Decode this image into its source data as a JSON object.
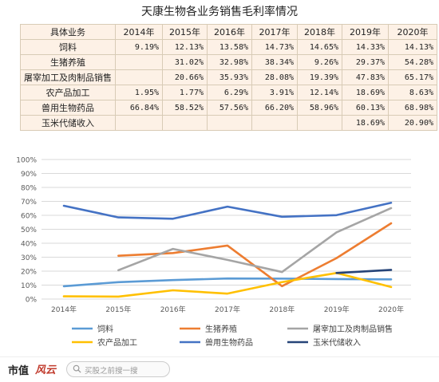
{
  "title": "天康生物各业务销售毛利率情况",
  "table": {
    "header": [
      "具体业务",
      "2014年",
      "2015年",
      "2016年",
      "2017年",
      "2018年",
      "2019年",
      "2020年"
    ],
    "rows": [
      {
        "label": "饲料",
        "cells": [
          "9.19%",
          "12.13%",
          "13.58%",
          "14.73%",
          "14.65%",
          "14.33%",
          "14.13%"
        ]
      },
      {
        "label": "生猪养殖",
        "cells": [
          "",
          "31.02%",
          "32.98%",
          "38.34%",
          "9.26%",
          "29.37%",
          "54.28%"
        ]
      },
      {
        "label": "屠宰加工及肉制品销售",
        "cells": [
          "",
          "20.66%",
          "35.93%",
          "28.08%",
          "19.39%",
          "47.83%",
          "65.17%"
        ]
      },
      {
        "label": "农产品加工",
        "cells": [
          "1.95%",
          "1.77%",
          "6.29%",
          "3.91%",
          "12.14%",
          "18.69%",
          "8.63%"
        ]
      },
      {
        "label": "兽用生物药品",
        "cells": [
          "66.84%",
          "58.52%",
          "57.56%",
          "66.20%",
          "58.96%",
          "60.13%",
          "68.98%"
        ]
      },
      {
        "label": "玉米代储收入",
        "cells": [
          "",
          "",
          "",
          "",
          "",
          "18.69%",
          "20.90%"
        ]
      }
    ]
  },
  "chart_data": {
    "type": "line",
    "categories": [
      "2014年",
      "2015年",
      "2016年",
      "2017年",
      "2018年",
      "2019年",
      "2020年"
    ],
    "yticks": [
      "0%",
      "10%",
      "20%",
      "30%",
      "40%",
      "50%",
      "60%",
      "70%",
      "80%",
      "90%",
      "100%"
    ],
    "ylim": [
      0,
      100
    ],
    "grid": true,
    "legend_position": "bottom",
    "series": [
      {
        "name": "饲料",
        "color": "#5b9bd5",
        "values": [
          9.19,
          12.13,
          13.58,
          14.73,
          14.65,
          14.33,
          14.13
        ]
      },
      {
        "name": "生猪养殖",
        "color": "#ed7d31",
        "values": [
          null,
          31.02,
          32.98,
          38.34,
          9.26,
          29.37,
          54.28
        ]
      },
      {
        "name": "屠宰加工及肉制品销售",
        "color": "#a5a5a5",
        "values": [
          null,
          20.66,
          35.93,
          28.08,
          19.39,
          47.83,
          65.17
        ]
      },
      {
        "name": "农产品加工",
        "color": "#ffc000",
        "values": [
          1.95,
          1.77,
          6.29,
          3.91,
          12.14,
          18.69,
          8.63
        ]
      },
      {
        "name": "兽用生物药品",
        "color": "#4472c4",
        "values": [
          66.84,
          58.52,
          57.56,
          66.2,
          58.96,
          60.13,
          68.98
        ]
      },
      {
        "name": "玉米代储收入",
        "color": "#264478",
        "values": [
          null,
          null,
          null,
          null,
          null,
          18.69,
          20.9
        ]
      }
    ]
  },
  "footer": {
    "logo_text": "市值",
    "logo_mark": "风云",
    "search_placeholder": "买股之前搜一搜"
  }
}
